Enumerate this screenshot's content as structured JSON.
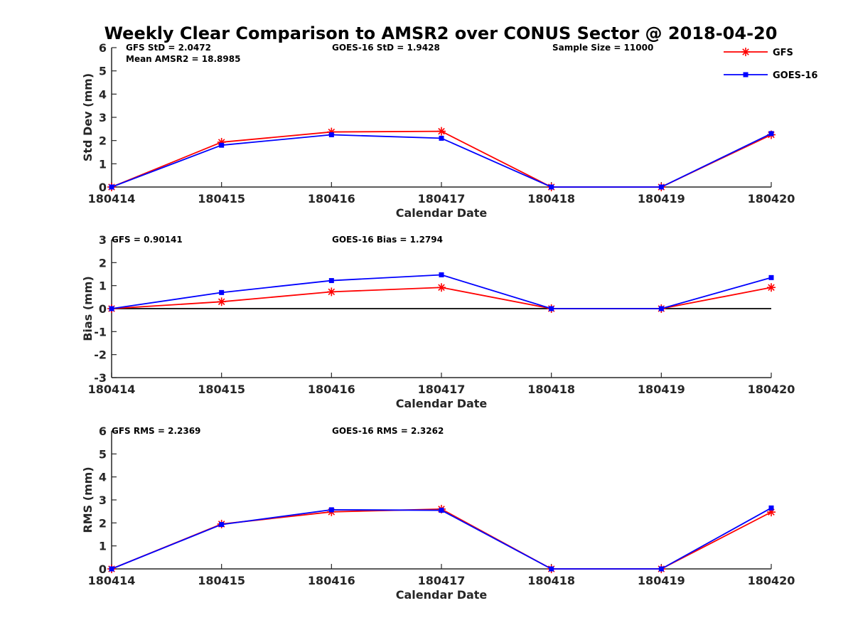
{
  "figure_title": "Weekly Clear Comparison to AMSR2 over CONUS Sector @ 2018-04-20",
  "colors": {
    "GFS": "#ff0000",
    "GOES-16": "#0000ff",
    "axis": "#262626",
    "zero_line": "#000000"
  },
  "legend": {
    "placement": "top-right",
    "entries": [
      {
        "name": "GFS",
        "color": "#ff0000",
        "marker": "asterisk"
      },
      {
        "name": "GOES-16",
        "color": "#0000ff",
        "marker": "square"
      }
    ]
  },
  "chart_data": [
    {
      "type": "line",
      "categories": [
        "180414",
        "180415",
        "180416",
        "180417",
        "180418",
        "180419",
        "180420"
      ],
      "xlabel": "Calendar Date",
      "ylabel": "Std Dev (mm)",
      "ylim": [
        0,
        6
      ],
      "yticks": [
        0,
        1,
        2,
        3,
        4,
        5,
        6
      ],
      "grid": false,
      "zero_line": false,
      "annotations": [
        "GFS StD = 2.0472",
        "Mean AMSR2 = 18.8985",
        "GOES-16 StD = 1.9428",
        "Sample Size = 11000"
      ],
      "series": [
        {
          "name": "GFS",
          "values": [
            0.0,
            1.93,
            2.37,
            2.4,
            0.0,
            0.0,
            2.25
          ]
        },
        {
          "name": "GOES-16",
          "values": [
            0.0,
            1.8,
            2.25,
            2.1,
            0.0,
            0.0,
            2.3
          ]
        }
      ]
    },
    {
      "type": "line",
      "categories": [
        "180414",
        "180415",
        "180416",
        "180417",
        "180418",
        "180419",
        "180420"
      ],
      "xlabel": "Calendar Date",
      "ylabel": "Bias (mm)",
      "ylim": [
        -3,
        3
      ],
      "yticks": [
        -3,
        -2,
        -1,
        0,
        1,
        2,
        3
      ],
      "grid": false,
      "zero_line": true,
      "annotations": [
        "GFS = 0.90141",
        "GOES-16 Bias  = 1.2794"
      ],
      "series": [
        {
          "name": "GFS",
          "values": [
            0.0,
            0.3,
            0.73,
            0.92,
            0.0,
            0.0,
            0.92
          ]
        },
        {
          "name": "GOES-16",
          "values": [
            0.0,
            0.7,
            1.22,
            1.47,
            0.0,
            0.0,
            1.35
          ]
        }
      ]
    },
    {
      "type": "line",
      "categories": [
        "180414",
        "180415",
        "180416",
        "180417",
        "180418",
        "180419",
        "180420"
      ],
      "xlabel": "Calendar Date",
      "ylabel": "RMS (mm)",
      "ylim": [
        0,
        6
      ],
      "yticks": [
        0,
        1,
        2,
        3,
        4,
        5,
        6
      ],
      "grid": false,
      "zero_line": false,
      "annotations": [
        "GFS RMS = 2.2369",
        "GOES-16 RMS = 2.3262"
      ],
      "series": [
        {
          "name": "GFS",
          "values": [
            0.0,
            1.95,
            2.48,
            2.6,
            0.0,
            0.0,
            2.47
          ]
        },
        {
          "name": "GOES-16",
          "values": [
            0.0,
            1.93,
            2.57,
            2.55,
            0.0,
            0.0,
            2.65
          ]
        }
      ]
    }
  ]
}
